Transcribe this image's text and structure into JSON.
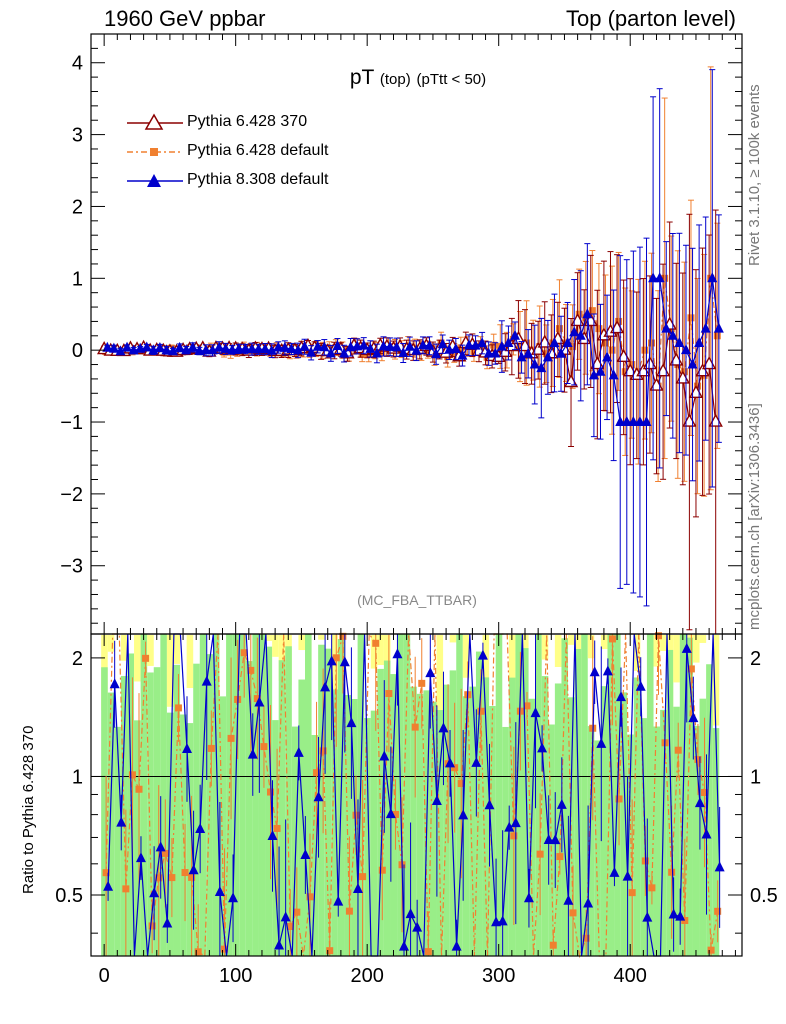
{
  "header": {
    "left": "1960 GeV ppbar",
    "right": "Top (parton level)"
  },
  "side_texts": {
    "rivet": "Rivet 3.1.10, ≥ 100k events",
    "mcplots": "mcplots.cern.ch [arXiv:1306.3436]"
  },
  "ratio_axis_label": "Ratio to Pythia 6.428 370",
  "analysis_tag": "(MC_FBA_TTBAR)",
  "plot_title": {
    "main": "pT",
    "sub1": "(top)",
    "sub2": "(pTtt < 50)"
  },
  "colors": {
    "series_a": "#8b0000",
    "series_b": "#f08030",
    "series_c": "#0000cc",
    "band_yellow": "#ffff88",
    "band_green": "#99ee88"
  },
  "chart_data": {
    "type": "line",
    "x_range": [
      -10,
      485
    ],
    "main_ylim": [
      -3.95,
      4.4
    ],
    "ratio_ylim": [
      0.35,
      2.3
    ],
    "ratio_scale": "log",
    "x_ticks": [
      "0",
      "100",
      "200",
      "300",
      "400"
    ],
    "main_y_ticks": [
      "−3",
      "−2",
      "−1",
      "0",
      "1",
      "2",
      "3",
      "4"
    ],
    "ratio_y_ticks": [
      "0.5",
      "1",
      "2"
    ],
    "series": [
      {
        "name": "Pythia 6.428 370",
        "marker": "open-triangle",
        "x": [
          300,
          305,
          310,
          315,
          320,
          325,
          330,
          335,
          340,
          345,
          350,
          355,
          360,
          365,
          370,
          375,
          380,
          385,
          390,
          395,
          400,
          405,
          410,
          415,
          420,
          425,
          430,
          435,
          440,
          445,
          450,
          455,
          460,
          465
        ],
        "y": [
          -0.1,
          -0.03,
          0.05,
          0.15,
          0.05,
          -0.05,
          0.0,
          0.1,
          -0.05,
          0.15,
          0.0,
          -0.45,
          0.4,
          0.15,
          0.4,
          -0.2,
          0.2,
          0.25,
          0.3,
          -0.1,
          -0.3,
          -0.35,
          -0.3,
          -0.2,
          -0.5,
          -0.3,
          0.35,
          -0.15,
          -0.4,
          -1.0,
          -0.6,
          -0.3,
          -0.2,
          -1.0
        ]
      },
      {
        "name": "Pythia 6.428 default",
        "marker": "square",
        "x": [
          300,
          305,
          310,
          315,
          320,
          325,
          330,
          335,
          340,
          345,
          350,
          355,
          360,
          365,
          370,
          375,
          380,
          385,
          390,
          395,
          400,
          405,
          410,
          415,
          420,
          425,
          430,
          435,
          440,
          445,
          450,
          455,
          460,
          465
        ],
        "y": [
          0.05,
          0.0,
          0.15,
          0.05,
          0.1,
          0.0,
          0.05,
          -0.05,
          0.1,
          0.3,
          0.1,
          0.05,
          0.5,
          0.45,
          0.55,
          0.3,
          0.1,
          0.0,
          0.4,
          -0.3,
          -0.2,
          -0.3,
          0.0,
          0.1,
          -0.5,
          1.0,
          0.3,
          -0.2,
          -0.3,
          0.45,
          -0.5,
          -0.35,
          1.0,
          0.2
        ]
      },
      {
        "name": "Pythia 8.308 default",
        "marker": "filled-triangle",
        "x": [
          300,
          305,
          310,
          315,
          320,
          325,
          330,
          335,
          340,
          345,
          350,
          355,
          360,
          365,
          370,
          375,
          380,
          385,
          390,
          395,
          400,
          405,
          410,
          415,
          420,
          425,
          430,
          435,
          440,
          445,
          450,
          455,
          460,
          465
        ],
        "y": [
          0.05,
          0.1,
          0.2,
          -0.1,
          -0.05,
          -0.2,
          -0.25,
          -0.1,
          0.1,
          -0.05,
          0.1,
          0.25,
          0.2,
          0.5,
          -0.35,
          -0.3,
          -0.1,
          -0.35,
          -1.0,
          -1.0,
          -1.0,
          -1.0,
          -1.0,
          1.0,
          1.0,
          0.3,
          0.2,
          0.1,
          0.0,
          -0.2,
          0.1,
          0.3,
          1.0,
          0.3
        ]
      }
    ]
  }
}
